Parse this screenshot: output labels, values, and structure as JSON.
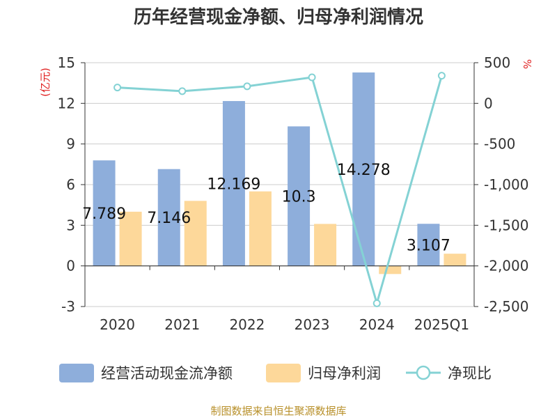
{
  "title": "历年经营现金净额、归母净利润情况",
  "source_note": "制图数据来自恒生聚源数据库",
  "colors": {
    "cash": "#8eaedb",
    "profit": "#fdd89a",
    "ratio": "#84d2d4",
    "grid": "#cccccc",
    "axis": "#333333",
    "unit": "#e02020",
    "source": "#b8902a"
  },
  "chart_data": {
    "type": "bar",
    "title": "历年经营现金净额、归母净利润情况",
    "categories": [
      "2020",
      "2021",
      "2022",
      "2023",
      "2024",
      "2025Q1"
    ],
    "left_axis": {
      "unit_label": "(亿元)",
      "range": [
        -3,
        15
      ],
      "ticks": [
        -3,
        0,
        3,
        6,
        9,
        12,
        15
      ],
      "tick_labels": [
        "-3",
        "0",
        "3",
        "6",
        "9",
        "12",
        "15"
      ]
    },
    "right_axis": {
      "unit_label": "%",
      "range": [
        -2500,
        500
      ],
      "ticks": [
        -2500,
        -2000,
        -1500,
        -1000,
        -500,
        0,
        500
      ],
      "tick_labels": [
        "-2,500",
        "-2,000",
        "-1,500",
        "-1,000",
        "-500",
        "0",
        "500"
      ]
    },
    "grid": true,
    "legend_position": "bottom",
    "series": [
      {
        "name": "经营活动现金流净额",
        "type": "bar",
        "axis": "left",
        "values": [
          7.789,
          7.146,
          12.169,
          10.3,
          14.278,
          3.107
        ],
        "data_labels": [
          "7.789",
          "7.146",
          "12.169",
          "10.3",
          "14.278",
          "3.107"
        ]
      },
      {
        "name": "归母净利润",
        "type": "bar",
        "axis": "left",
        "values": [
          4.0,
          4.8,
          5.5,
          3.1,
          -0.6,
          0.9
        ]
      },
      {
        "name": "净现比",
        "type": "line",
        "axis": "right",
        "values": [
          195,
          150,
          210,
          320,
          -2460,
          340
        ]
      }
    ]
  }
}
